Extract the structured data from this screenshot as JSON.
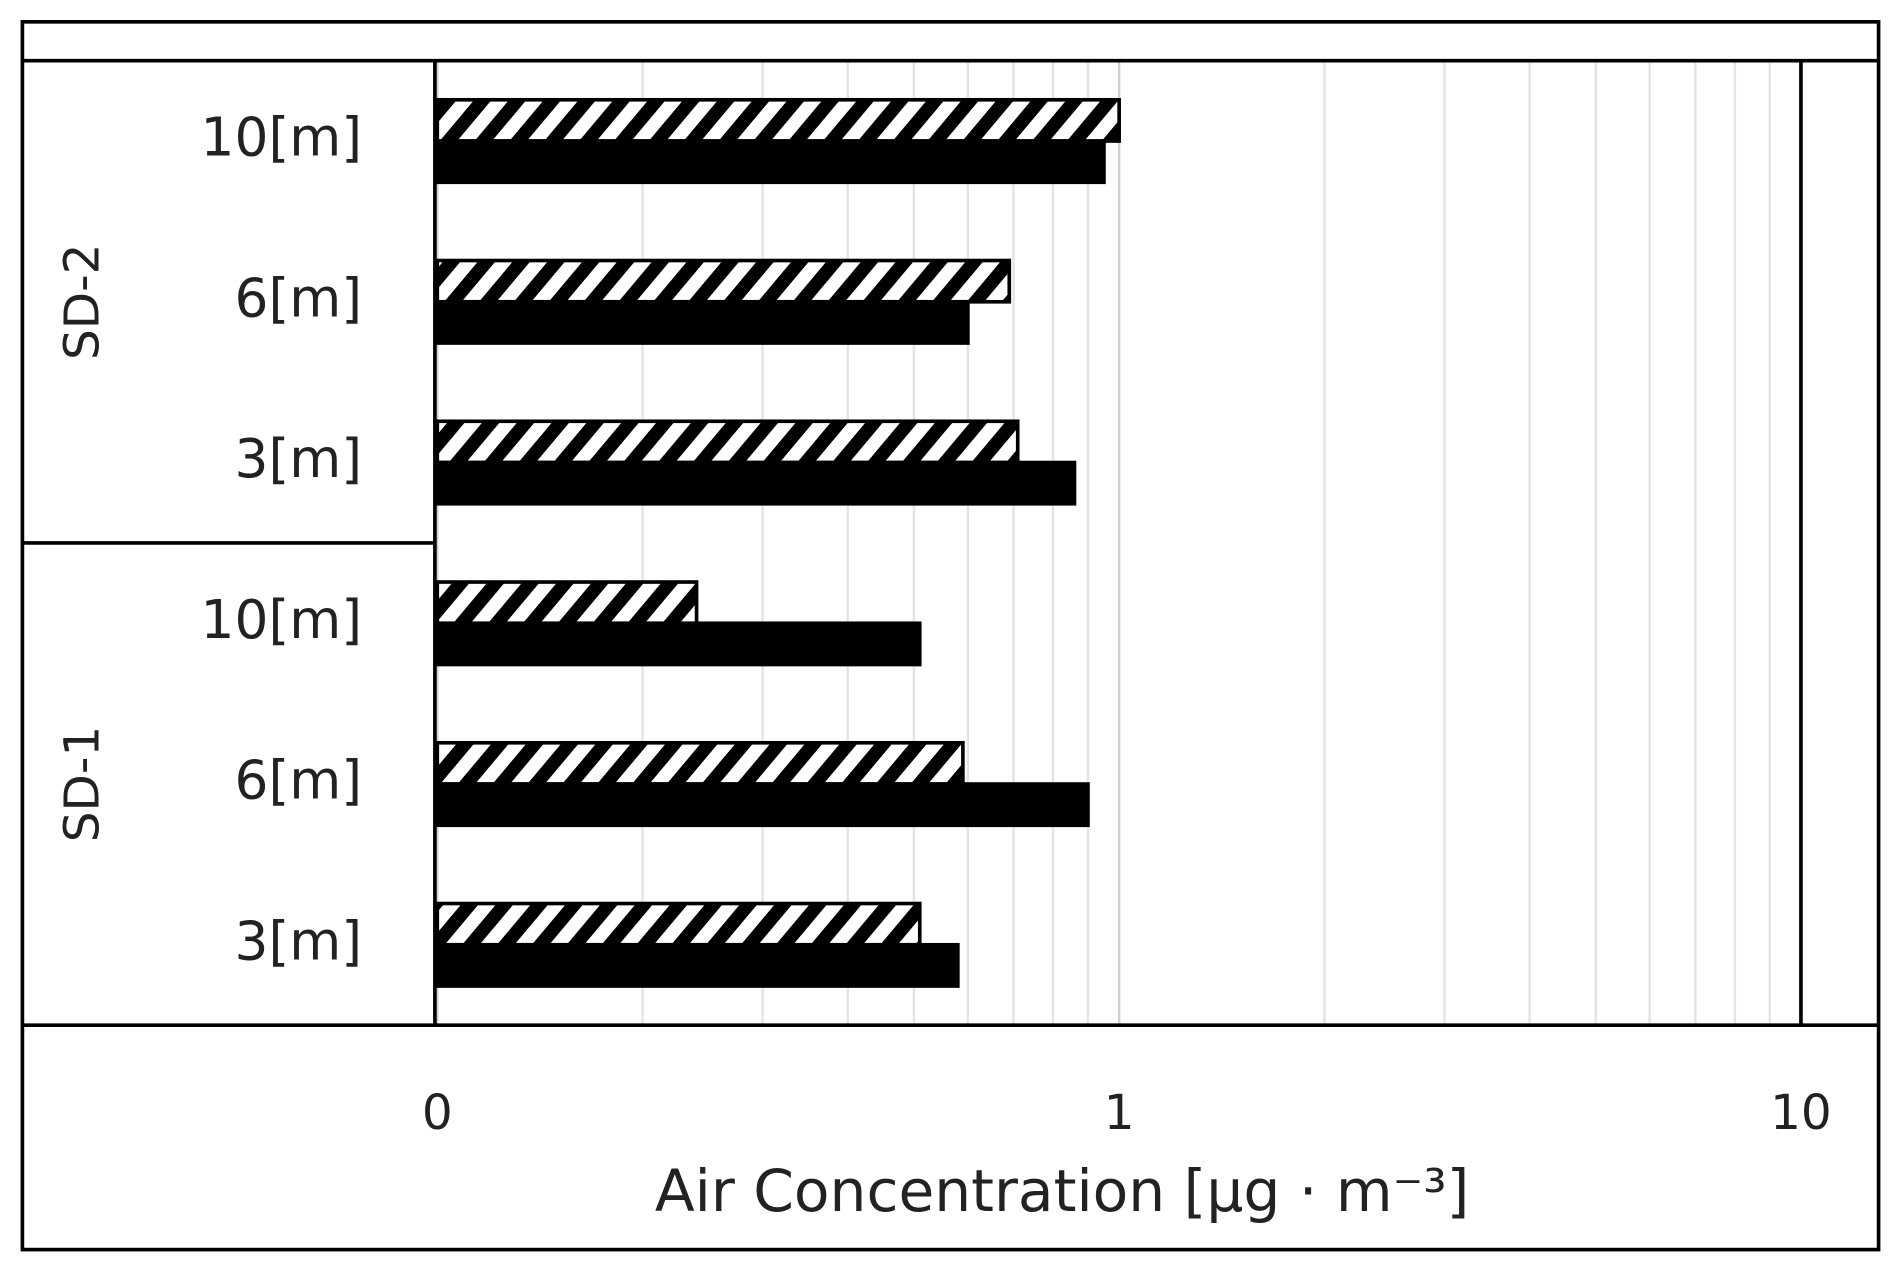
{
  "chart_data": {
    "type": "hbar",
    "orientation": "horizontal",
    "x_label": "Air Concentration [μg · m⁻³]",
    "groups": [
      {
        "name": "SD-2",
        "categories": [
          "10[m]",
          "6[m]",
          "3[m]"
        ]
      },
      {
        "name": "SD-1",
        "categories": [
          "10[m]",
          "6[m]",
          "3[m]"
        ]
      }
    ],
    "series": [
      {
        "color": "#000000",
        "pattern": "hatch",
        "values": [
          1.0,
          0.69,
          0.71,
          0.24,
          0.59,
          0.51
        ]
      },
      {
        "color": "#000000",
        "pattern": "solid",
        "values": [
          0.95,
          0.6,
          0.86,
          0.51,
          0.9,
          0.58
        ]
      }
    ],
    "x_scale": "log",
    "xlim": [
      0.1,
      10
    ],
    "xticks": [
      {
        "value": 0.1,
        "label": "0"
      },
      1,
      10
    ],
    "x_minor_ticks": [
      0.2,
      0.3,
      0.4,
      0.5,
      0.6,
      0.7,
      0.8,
      0.9,
      2,
      3,
      4,
      5,
      6,
      7,
      8,
      9
    ],
    "grid": true
  }
}
